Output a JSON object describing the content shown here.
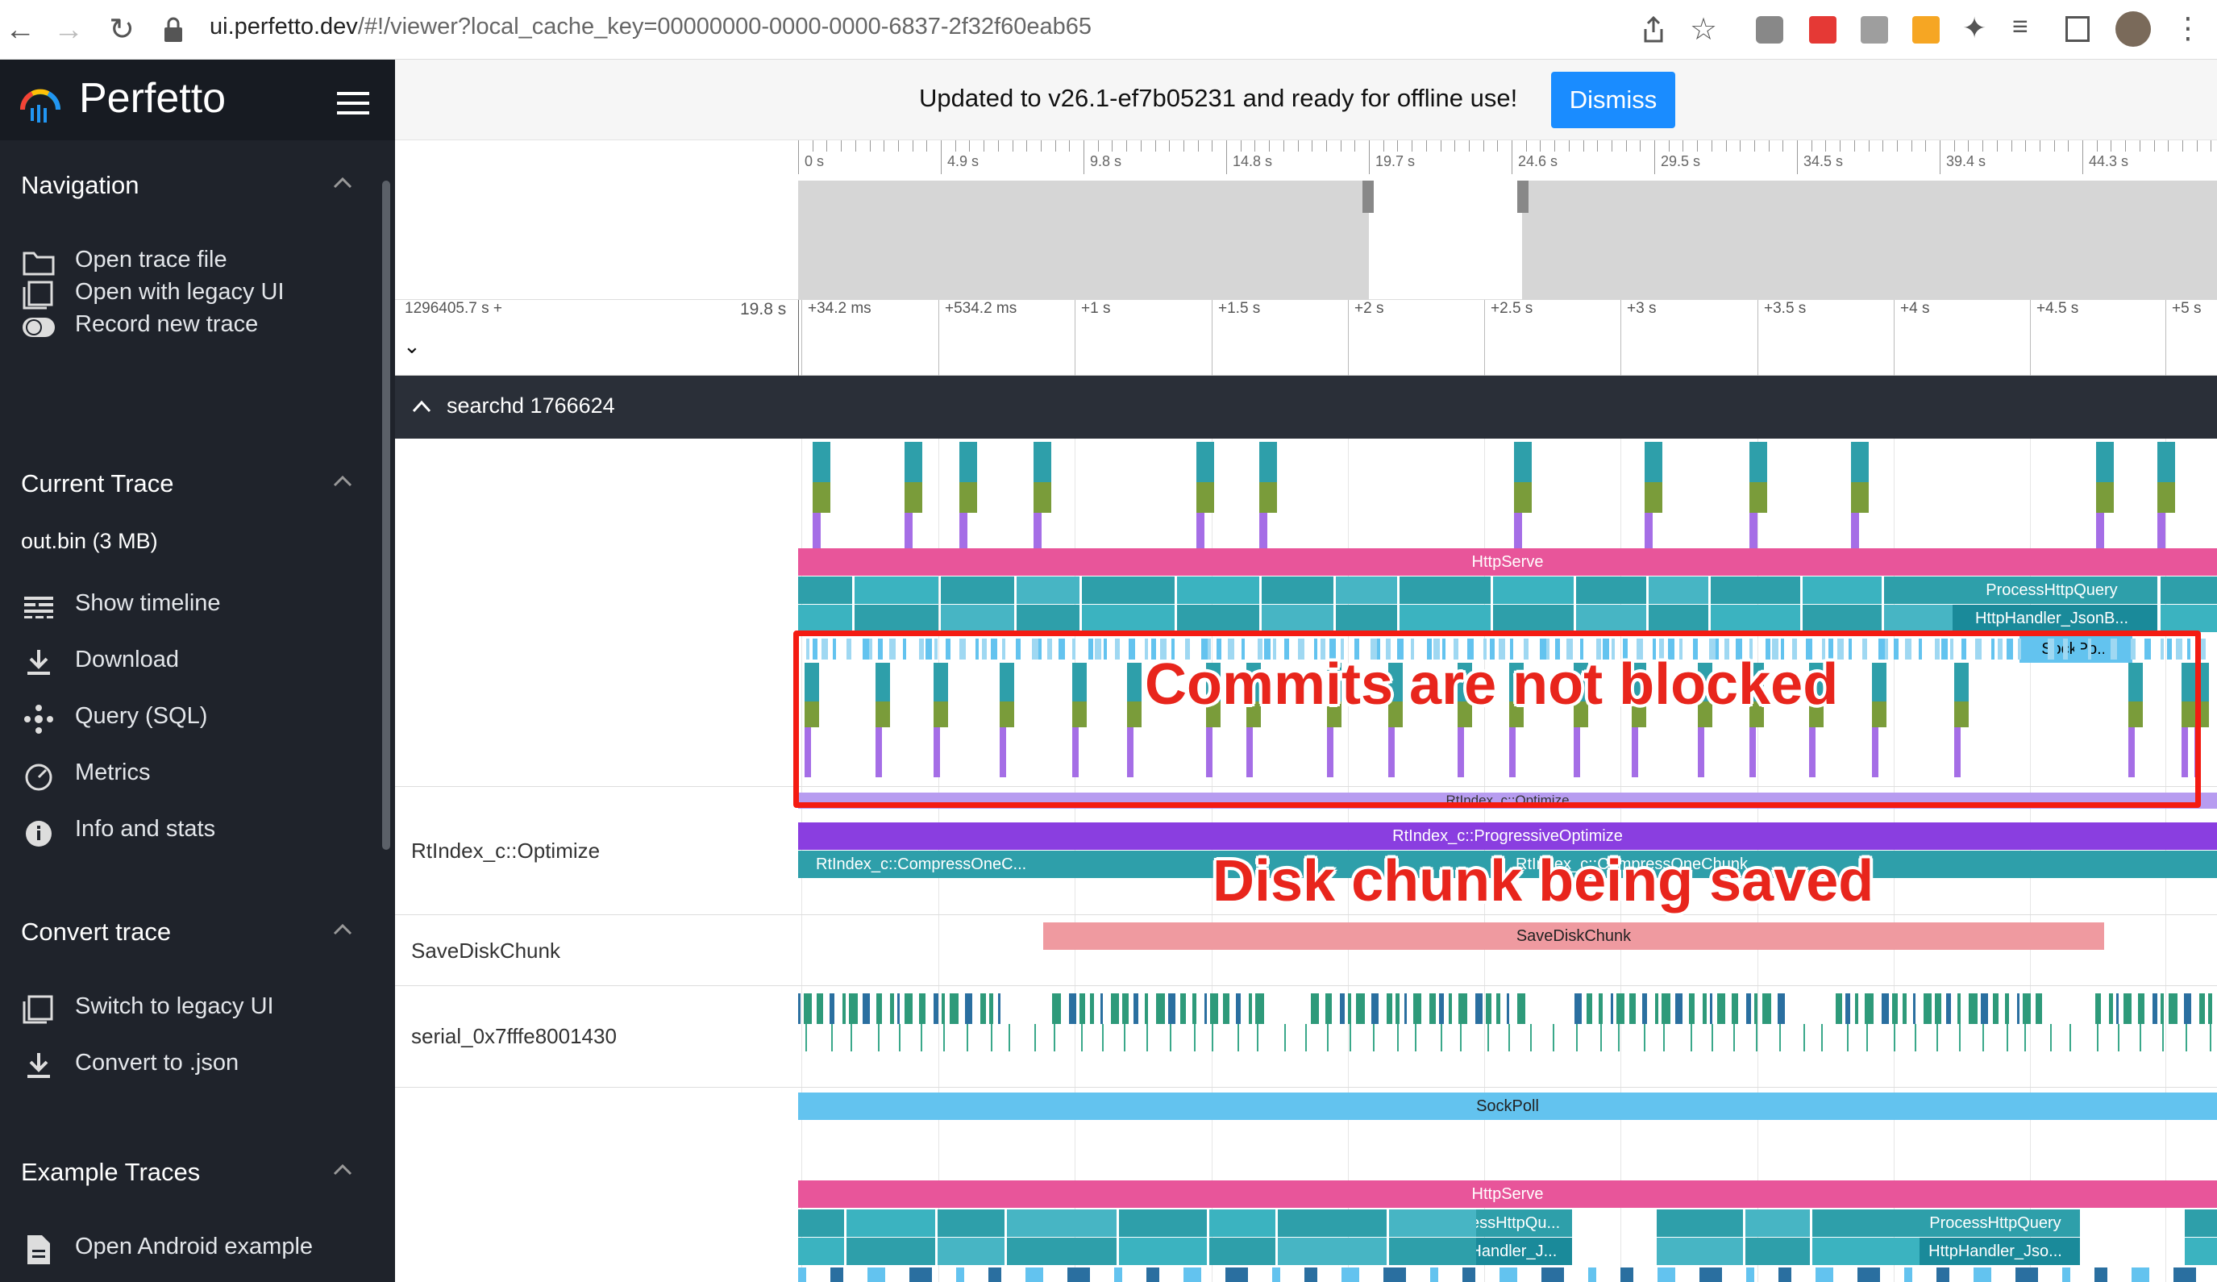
{
  "browser": {
    "url_host": "ui.perfetto.dev",
    "url_path": "/#!/viewer?local_cache_key=00000000-0000-0000-6837-2f32f60eab65"
  },
  "sidebar": {
    "brand": "Perfetto",
    "sections": {
      "navigation": {
        "title": "Navigation",
        "items": [
          "Open trace file",
          "Open with legacy UI",
          "Record new trace"
        ]
      },
      "current_trace": {
        "title": "Current Trace",
        "file": "out.bin (3 MB)",
        "items": [
          "Show timeline",
          "Download",
          "Query (SQL)",
          "Metrics",
          "Info and stats"
        ]
      },
      "convert_trace": {
        "title": "Convert trace",
        "items": [
          "Switch to legacy UI",
          "Convert to .json"
        ]
      },
      "example_traces": {
        "title": "Example Traces",
        "items": [
          "Open Android example"
        ]
      }
    }
  },
  "banner": {
    "text": "Updated to v26.1-ef7b05231 and ready for offline use!",
    "dismiss": "Dismiss"
  },
  "overview": {
    "ticks": [
      "0 s",
      "4.9 s",
      "9.8 s",
      "14.8 s",
      "19.7 s",
      "24.6 s",
      "29.5 s",
      "34.5 s",
      "39.4 s",
      "44.3 s"
    ]
  },
  "timeaxis": {
    "offset": "1296405.7 s +",
    "span": "19.8 s",
    "ticks": [
      "+34.2 ms",
      "+534.2 ms",
      "+1 s",
      "+1.5 s",
      "+2 s",
      "+2.5 s",
      "+3 s",
      "+3.5 s",
      "+4 s",
      "+4.5 s",
      "+5 s"
    ]
  },
  "process": {
    "title": "searchd 1766624"
  },
  "tracks": {
    "optimize_label": "RtIndex_c::Optimize",
    "savedisk_label": "SaveDiskChunk",
    "serial_label": "serial_0x7fffe8001430"
  },
  "slices": {
    "httpserve": "HttpServe",
    "sockpo": "SockPo...",
    "optimize_top": "RtIndex_c::Optimize",
    "progressive": "RtIndex_c::ProgressiveOptimize",
    "compress1": "RtIndex_c::CompressOneC...",
    "compress2": "RtIndex_c::CompressOneChunk",
    "savedisk": "SaveDiskChunk",
    "sockpoll": "SockPoll",
    "processhttp": "ProcessHttpQuery",
    "httphandler": "HttpHandler_JsonB...",
    "processhttp2": "ProcessHttpQu...",
    "httphandler2": "HttpHandler_J...",
    "processhttp3": "ProcessHttpQuery",
    "httphandler3": "HttpHandler_Jso..."
  },
  "annotations": {
    "commits": "Commits are not blocked",
    "disk": "Disk chunk being saved"
  },
  "colors": {
    "sidebar_bg": "#1f232b",
    "accent": "#1a8cff",
    "httpserve": "#e8559a",
    "process_teal": "#2e9faa",
    "purple": "#8a3ee0",
    "savedisk": "#ef9aa0",
    "sockpoll": "#63c3ef",
    "annotation_red": "#f41b12"
  }
}
